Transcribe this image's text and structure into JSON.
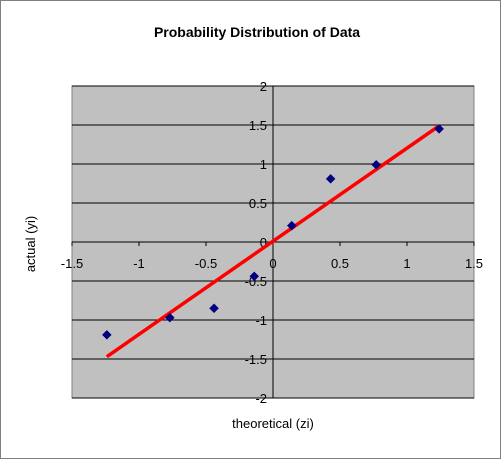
{
  "chart_data": {
    "type": "scatter",
    "title": "Probability Distribution of Data",
    "xlabel": "theoretical  (zi)",
    "ylabel": "actual (yi)",
    "xlim": [
      -1.5,
      1.5
    ],
    "ylim": [
      -2,
      2
    ],
    "x_ticks": [
      "-1.5",
      "-1",
      "-0.5",
      "0",
      "0.5",
      "1",
      "1.5"
    ],
    "y_ticks": [
      "2",
      "1.5",
      "1",
      "0.5",
      "0",
      "-0.5",
      "-1",
      "-1.5",
      "-2"
    ],
    "grid": "horizontal",
    "legend": "none",
    "series": [
      {
        "points": [
          {
            "x": -1.24,
            "y": -1.19
          },
          {
            "x": -0.77,
            "y": -0.97
          },
          {
            "x": -0.44,
            "y": -0.85
          },
          {
            "x": -0.14,
            "y": -0.44
          },
          {
            "x": 0.14,
            "y": 0.21
          },
          {
            "x": 0.43,
            "y": 0.81
          },
          {
            "x": 0.77,
            "y": 0.99
          },
          {
            "x": 1.24,
            "y": 1.45
          }
        ],
        "color": "#000080",
        "marker": "diamond"
      }
    ],
    "trendline": {
      "x": [
        -1.24,
        1.24
      ],
      "y": [
        -1.47,
        1.49
      ],
      "color": "#ff0000"
    },
    "colors": {
      "background": "#ffffff",
      "plot_area": "#c0c0c0",
      "gridline": "#000000",
      "border": "#808080"
    }
  }
}
